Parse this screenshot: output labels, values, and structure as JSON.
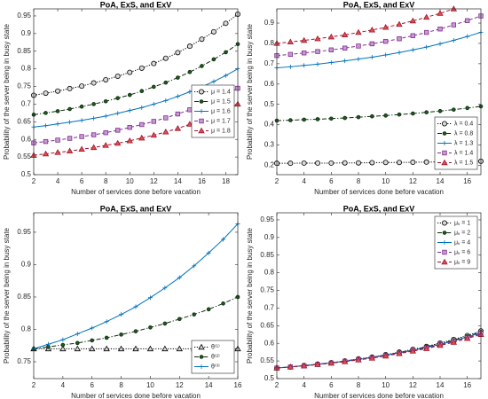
{
  "chart_data": [
    {
      "type": "line",
      "title": "PoA, ExS, and ExV",
      "xlabel": "Number of services done before vacation",
      "ylabel": "Probability of the server being in busy state",
      "x": [
        2,
        3,
        4,
        5,
        6,
        7,
        8,
        9,
        10,
        11,
        12,
        13,
        14,
        15,
        16,
        17,
        18,
        19
      ],
      "xlim": [
        2,
        19
      ],
      "xticks": [
        2,
        4,
        6,
        8,
        10,
        12,
        14,
        16,
        18
      ],
      "ylim": [
        0.5,
        0.97
      ],
      "yticks": [
        0.5,
        0.55,
        0.6,
        0.65,
        0.7,
        0.75,
        0.8,
        0.85,
        0.9,
        0.95
      ],
      "legend": "right",
      "series": [
        {
          "name": "μ = 1.4",
          "color": "#000000",
          "dash": "dotted",
          "marker": "circle",
          "marker_fill": "#d9d9d9",
          "values": [
            0.725,
            0.731,
            0.737,
            0.744,
            0.751,
            0.76,
            0.769,
            0.779,
            0.79,
            0.802,
            0.815,
            0.83,
            0.846,
            0.864,
            0.884,
            0.905,
            0.929,
            0.955
          ]
        },
        {
          "name": "μ = 1.5",
          "color": "#0d2b0d",
          "dash": "dashdot",
          "marker": "dot",
          "marker_fill": "#1e5a1e",
          "values": [
            0.67,
            0.675,
            0.68,
            0.686,
            0.693,
            0.7,
            0.708,
            0.717,
            0.726,
            0.737,
            0.749,
            0.761,
            0.775,
            0.791,
            0.808,
            0.827,
            0.847,
            0.87
          ]
        },
        {
          "name": "μ = 1.6",
          "color": "#0072bd",
          "dash": "solid",
          "marker": "plus",
          "marker_fill": "#0072bd",
          "values": [
            0.635,
            0.639,
            0.644,
            0.649,
            0.654,
            0.66,
            0.666,
            0.674,
            0.682,
            0.69,
            0.7,
            0.71,
            0.722,
            0.735,
            0.749,
            0.764,
            0.781,
            0.8
          ]
        },
        {
          "name": "μ = 1.7",
          "color": "#7e2f8e",
          "dash": "dashed",
          "marker": "square",
          "marker_fill": "#c79ad1",
          "values": [
            0.59,
            0.594,
            0.598,
            0.603,
            0.608,
            0.613,
            0.619,
            0.626,
            0.634,
            0.642,
            0.651,
            0.661,
            0.672,
            0.684,
            0.697,
            0.712,
            0.727,
            0.745
          ]
        },
        {
          "name": "μ = 1.8",
          "color": "#a2142f",
          "dash": "dashed",
          "marker": "triangle",
          "marker_fill": "#d9534f",
          "values": [
            0.555,
            0.559,
            0.563,
            0.567,
            0.572,
            0.577,
            0.583,
            0.589,
            0.596,
            0.604,
            0.612,
            0.621,
            0.631,
            0.643,
            0.655,
            0.669,
            0.684,
            0.7
          ]
        }
      ]
    },
    {
      "type": "line",
      "title": "PoA, ExS, and ExV",
      "xlabel": "Number of services done before vacation",
      "ylabel": "Probability of the server being in busy state",
      "x": [
        2,
        3,
        4,
        5,
        6,
        7,
        8,
        9,
        10,
        11,
        12,
        13,
        14,
        15,
        16,
        17
      ],
      "xlim": [
        2,
        17
      ],
      "xticks": [
        2,
        4,
        6,
        8,
        10,
        12,
        14,
        16
      ],
      "ylim": [
        0.154,
        0.97
      ],
      "yticks": [
        0.2,
        0.3,
        0.4,
        0.5,
        0.6,
        0.7,
        0.8,
        0.9
      ],
      "legend": "lower right",
      "series": [
        {
          "name": "λ = 0.4",
          "color": "#000000",
          "dash": "dotted",
          "marker": "circle",
          "marker_fill": "#d9d9d9",
          "values": [
            0.21,
            0.21,
            0.211,
            0.211,
            0.211,
            0.212,
            0.212,
            0.213,
            0.214,
            0.214,
            0.215,
            0.216,
            0.217,
            0.218,
            0.219,
            0.22
          ]
        },
        {
          "name": "λ = 0.8",
          "color": "#0d2b0d",
          "dash": "dashdot",
          "marker": "dot",
          "marker_fill": "#1e5a1e",
          "values": [
            0.42,
            0.422,
            0.425,
            0.427,
            0.43,
            0.433,
            0.437,
            0.441,
            0.445,
            0.45,
            0.455,
            0.461,
            0.467,
            0.474,
            0.482,
            0.49
          ]
        },
        {
          "name": "λ = 1.3",
          "color": "#0072bd",
          "dash": "solid",
          "marker": "plus",
          "marker_fill": "#0072bd",
          "values": [
            0.68,
            0.685,
            0.692,
            0.698,
            0.706,
            0.714,
            0.723,
            0.732,
            0.743,
            0.755,
            0.768,
            0.782,
            0.798,
            0.815,
            0.834,
            0.855
          ]
        },
        {
          "name": "λ = 1.4",
          "color": "#7e2f8e",
          "dash": "dashed",
          "marker": "square",
          "marker_fill": "#c79ad1",
          "values": [
            0.74,
            0.746,
            0.753,
            0.76,
            0.768,
            0.777,
            0.787,
            0.798,
            0.81,
            0.823,
            0.838,
            0.854,
            0.871,
            0.891,
            0.912,
            0.935
          ]
        },
        {
          "name": "λ = 1.5",
          "color": "#a2142f",
          "dash": "dashed",
          "marker": "triangle",
          "marker_fill": "#d9534f",
          "values": [
            0.8,
            0.807,
            0.815,
            0.823,
            0.832,
            0.842,
            0.854,
            0.866,
            0.879,
            0.894,
            0.911,
            0.929,
            0.948,
            0.97,
            null,
            null
          ]
        }
      ]
    },
    {
      "type": "line",
      "title": "PoA, ExS, and ExV",
      "xlabel": "Number of services done before vacation",
      "ylabel": "Probability of the server being in busy state",
      "x": [
        2,
        3,
        4,
        5,
        6,
        7,
        8,
        9,
        10,
        11,
        12,
        13,
        14,
        15,
        16
      ],
      "xlim": [
        2,
        16
      ],
      "xticks": [
        2,
        4,
        6,
        8,
        10,
        12,
        14,
        16
      ],
      "ylim": [
        0.724,
        0.98
      ],
      "yticks": [
        0.75,
        0.8,
        0.85,
        0.9,
        0.95
      ],
      "legend": "lower right",
      "series": [
        {
          "name": "θ⁽¹⁾",
          "color": "#000000",
          "dash": "dotted",
          "marker": "triangle",
          "marker_fill": "#d9d9d9",
          "values": [
            0.77,
            0.77,
            0.77,
            0.77,
            0.77,
            0.77,
            0.77,
            0.77,
            0.77,
            0.77,
            0.77,
            0.77,
            0.77,
            0.77,
            0.77
          ]
        },
        {
          "name": "θ⁽²⁾",
          "color": "#0d2b0d",
          "dash": "dashdot",
          "marker": "dot",
          "marker_fill": "#1e5a1e",
          "values": [
            0.77,
            0.773,
            0.776,
            0.779,
            0.783,
            0.787,
            0.792,
            0.797,
            0.803,
            0.809,
            0.816,
            0.823,
            0.831,
            0.84,
            0.85
          ]
        },
        {
          "name": "θ⁽³⁾",
          "color": "#0072bd",
          "dash": "solid",
          "marker": "plus",
          "marker_fill": "#0072bd",
          "values": [
            0.77,
            0.777,
            0.784,
            0.793,
            0.802,
            0.812,
            0.823,
            0.835,
            0.849,
            0.864,
            0.88,
            0.898,
            0.918,
            0.939,
            0.963
          ]
        }
      ]
    },
    {
      "type": "line",
      "title": "PoA, ExS, and ExV",
      "xlabel": "Number of services done before vacation",
      "ylabel": "Probability of the server being in busy state",
      "x": [
        2,
        3,
        4,
        5,
        6,
        7,
        8,
        9,
        10,
        11,
        12,
        13,
        14,
        15,
        16,
        17
      ],
      "xlim": [
        2,
        17
      ],
      "xticks": [
        2,
        4,
        6,
        8,
        10,
        12,
        14,
        16
      ],
      "ylim": [
        0.5,
        0.97
      ],
      "yticks": [
        0.5,
        0.55,
        0.6,
        0.65,
        0.7,
        0.75,
        0.8,
        0.85,
        0.9,
        0.95
      ],
      "legend": "upper right",
      "series": [
        {
          "name": "μᵥ = 1",
          "color": "#000000",
          "dash": "dotted",
          "marker": "circle",
          "marker_fill": "#d9d9d9",
          "values": [
            0.53,
            0.533,
            0.537,
            0.541,
            0.545,
            0.55,
            0.556,
            0.561,
            0.568,
            0.575,
            0.583,
            0.591,
            0.601,
            0.611,
            0.622,
            0.635
          ]
        },
        {
          "name": "μᵥ = 2",
          "color": "#0d2b0d",
          "dash": "dashdot",
          "marker": "dot",
          "marker_fill": "#1e5a1e",
          "values": [
            0.53,
            0.533,
            0.537,
            0.541,
            0.545,
            0.55,
            0.555,
            0.56,
            0.567,
            0.574,
            0.581,
            0.59,
            0.599,
            0.609,
            0.62,
            0.632
          ]
        },
        {
          "name": "μᵥ = 4",
          "color": "#0072bd",
          "dash": "solid",
          "marker": "plus",
          "marker_fill": "#0072bd",
          "values": [
            0.53,
            0.533,
            0.537,
            0.54,
            0.545,
            0.549,
            0.554,
            0.56,
            0.566,
            0.573,
            0.58,
            0.588,
            0.597,
            0.607,
            0.618,
            0.63
          ]
        },
        {
          "name": "μᵥ = 6",
          "color": "#7e2f8e",
          "dash": "dashed",
          "marker": "square",
          "marker_fill": "#c79ad1",
          "values": [
            0.53,
            0.533,
            0.536,
            0.54,
            0.544,
            0.549,
            0.554,
            0.559,
            0.565,
            0.572,
            0.579,
            0.587,
            0.596,
            0.606,
            0.616,
            0.628
          ]
        },
        {
          "name": "μᵥ = 9",
          "color": "#a2142f",
          "dash": "dashed",
          "marker": "triangle",
          "marker_fill": "#d9534f",
          "values": [
            0.53,
            0.533,
            0.536,
            0.54,
            0.544,
            0.548,
            0.553,
            0.558,
            0.564,
            0.571,
            0.578,
            0.585,
            0.594,
            0.603,
            0.614,
            0.625
          ]
        }
      ]
    }
  ]
}
